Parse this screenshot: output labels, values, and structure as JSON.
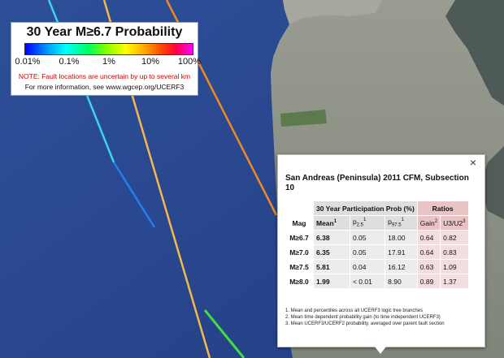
{
  "legend": {
    "title": "30 Year M≥6.7 Probability",
    "ticks": [
      "0.01%",
      "0.1%",
      "1%",
      "10%",
      "100%"
    ],
    "note": "NOTE: Fault locations are uncertain by up to several km",
    "info": "For more information, see www.wgcep.org/UCERF3"
  },
  "colors": {
    "ocean": "#2a4a93",
    "land": "#8a8d86",
    "fault_orange": "#f08a20",
    "fault_light_orange": "#f5b84a",
    "fault_cyan": "#3fd3e8",
    "fault_blue": "#1f7ff0",
    "fault_green": "#3ee040",
    "ratio_header": "#e8c4c4"
  },
  "popup": {
    "close": "×",
    "title": "San Andreas (Peninsula) 2011 CFM, Subsection 10",
    "group_participation": "30 Year Participation Prob (%)",
    "group_ratios": "Ratios",
    "col_mag": "Mag",
    "col_mean": "Mean",
    "col_mean_sup": "1",
    "col_p25": "p",
    "col_p25_sub": "2.5",
    "col_p25_sup": "1",
    "col_p975": "p",
    "col_p975_sub": "97.5",
    "col_p975_sup": "1",
    "col_gain": "Gain",
    "col_gain_sup": "2",
    "col_u3u2": "U3/U2",
    "col_u3u2_sup": "3",
    "rows": [
      {
        "mag": "M≥6.7",
        "mean": "6.38",
        "p25": "0.05",
        "p975": "18.00",
        "gain": "0.64",
        "ratio": "0.82"
      },
      {
        "mag": "M≥7.0",
        "mean": "6.35",
        "p25": "0.05",
        "p975": "17.91",
        "gain": "0.64",
        "ratio": "0.83"
      },
      {
        "mag": "M≥7.5",
        "mean": "5.81",
        "p25": "0.04",
        "p975": "16.12",
        "gain": "0.63",
        "ratio": "1.09"
      },
      {
        "mag": "M≥8.0",
        "mean": "1.99",
        "p25": "< 0.01",
        "p975": "8.90",
        "gain": "0.89",
        "ratio": "1.37"
      }
    ],
    "footnotes": [
      "1. Mean and percentiles across all UCERF3 logic tree branches",
      "2. Mean time dependent probability gain (to time independent UCERF3)",
      "3. Mean UCERF3/UCERF2 probability, averaged over parent fault section"
    ]
  }
}
